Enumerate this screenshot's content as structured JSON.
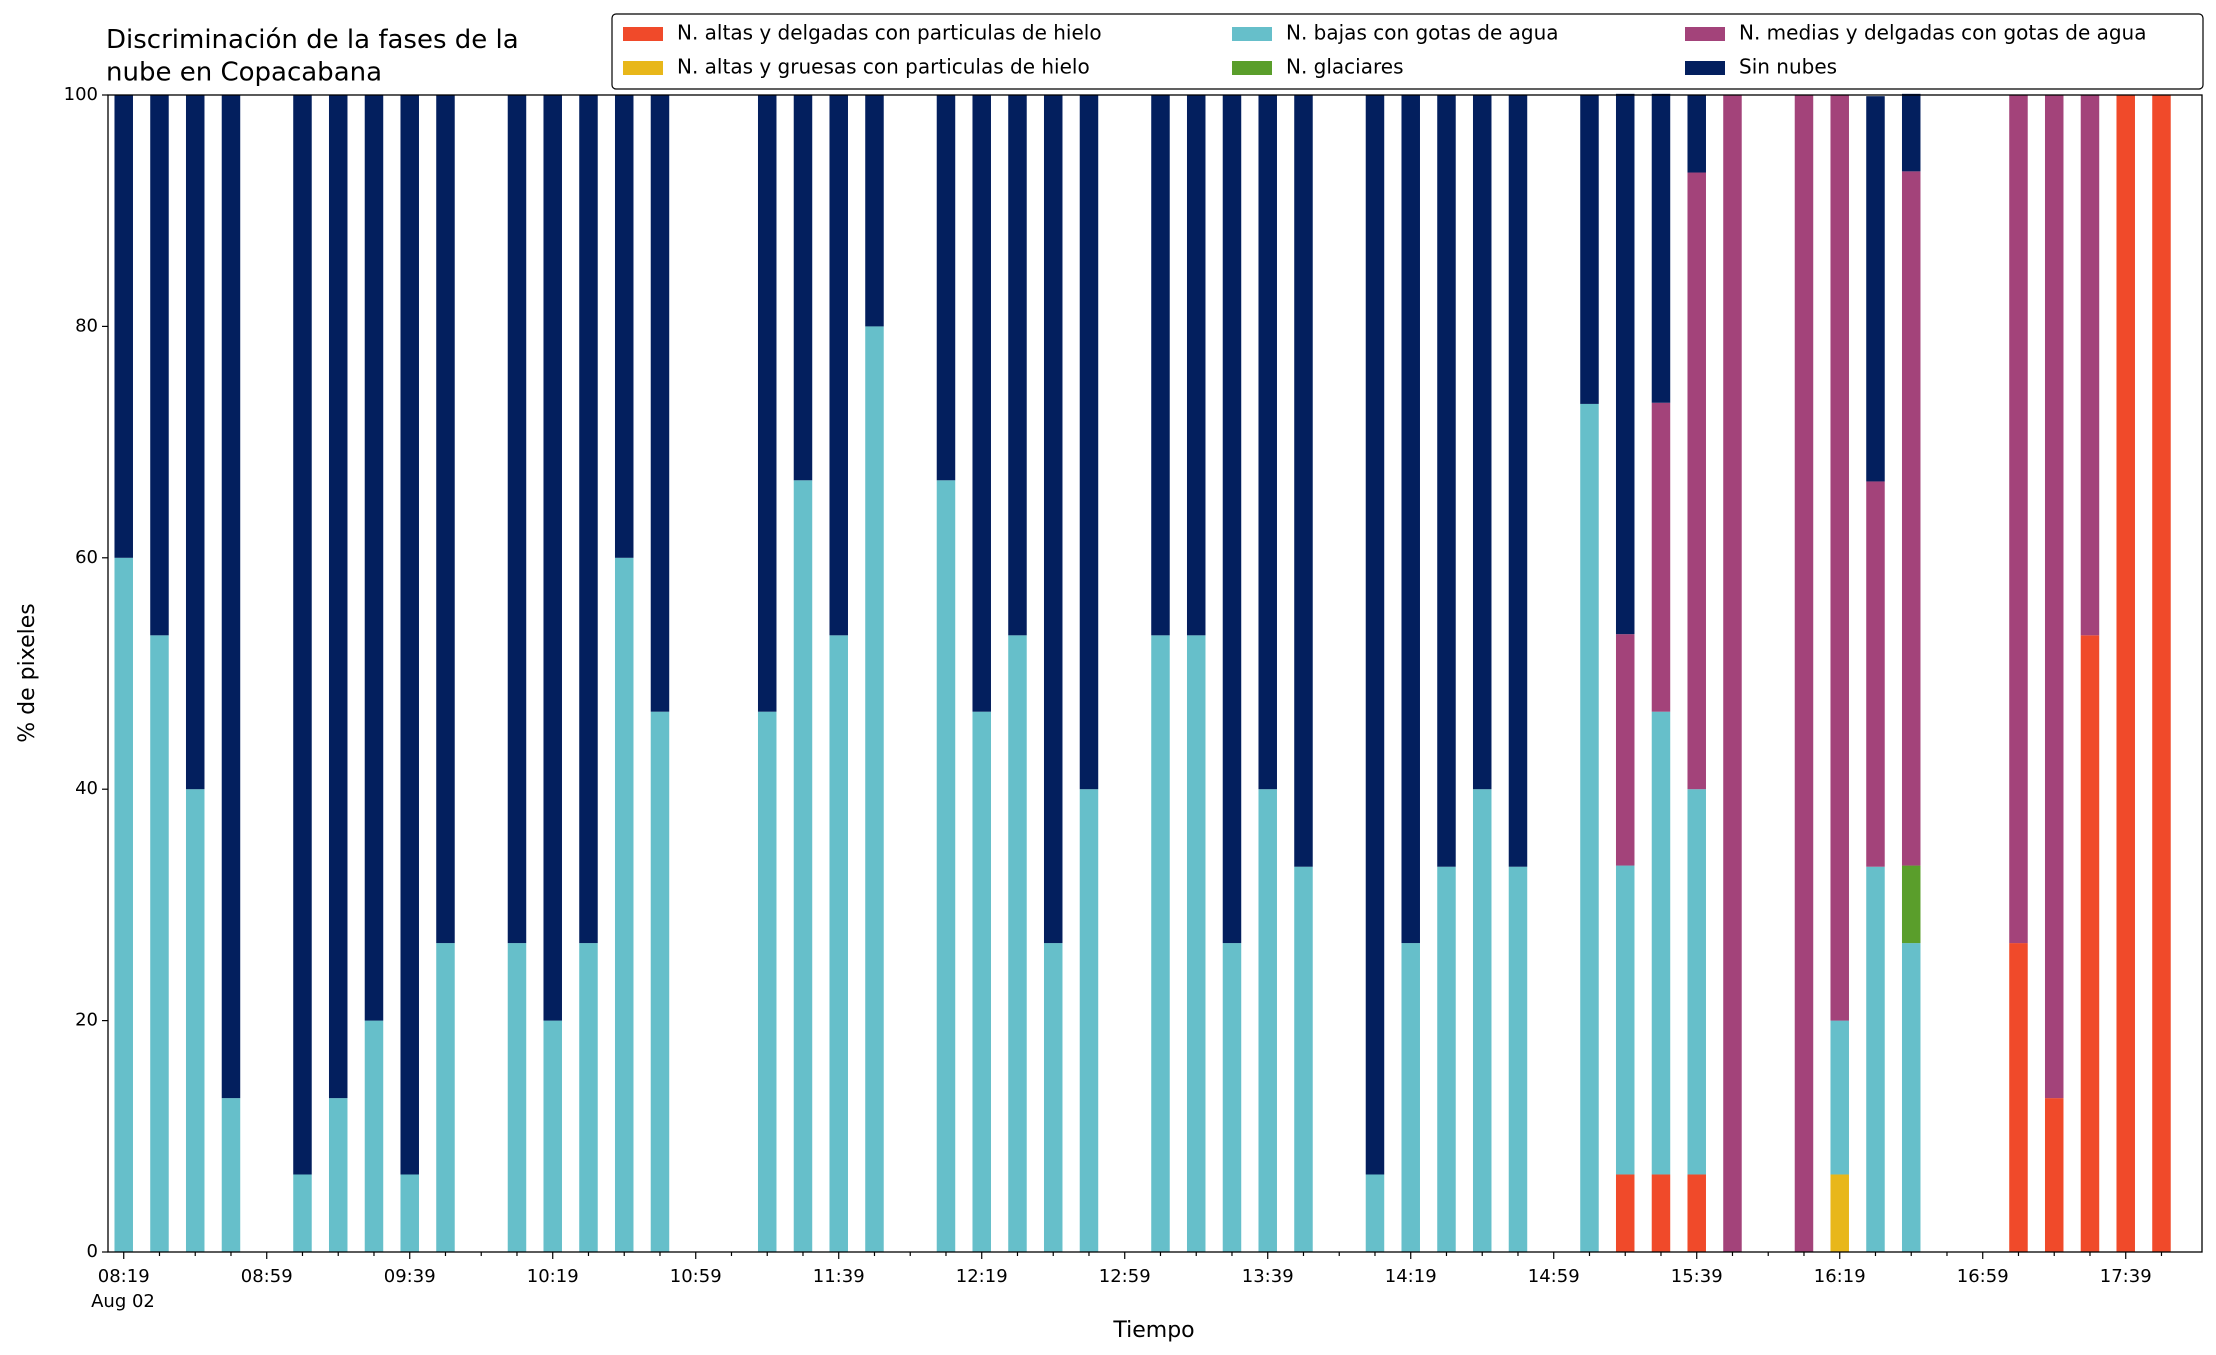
{
  "chart_data": {
    "type": "stacked_bar",
    "title": "Discriminación de la fases de la\nnube en Copacabana",
    "x_label": "Tiempo",
    "y_label": "% de pixeles",
    "x_date_label": "Aug 02",
    "categories": [
      "08:19",
      null,
      null,
      null,
      "08:59",
      null,
      null,
      null,
      "09:39",
      null,
      null,
      null,
      "10:19",
      null,
      null,
      null,
      "10:59",
      null,
      null,
      null,
      "11:39",
      null,
      null,
      null,
      "12:19",
      null,
      null,
      null,
      "12:59",
      null,
      null,
      null,
      "13:39",
      null,
      null,
      null,
      "14:19",
      null,
      null,
      null,
      "14:59",
      null,
      null,
      null,
      "15:39",
      null,
      null,
      null,
      "16:19",
      null,
      null,
      null,
      "16:59",
      null,
      null,
      null,
      "17:39",
      null
    ],
    "ylim": [
      0,
      100
    ],
    "yticks": [
      0,
      20,
      40,
      60,
      80,
      100
    ],
    "series": [
      {
        "name": "N. altas y delgadas con particulas de hielo",
        "color": "#f04a2a",
        "values": [
          0,
          0,
          0,
          0,
          0,
          0,
          0,
          0,
          0,
          0,
          0,
          0,
          0,
          0,
          0,
          0,
          0,
          0,
          0,
          0,
          0,
          0,
          0,
          0,
          0,
          0,
          0,
          0,
          0,
          0,
          0,
          0,
          0,
          0,
          0,
          0,
          0,
          0,
          0,
          0,
          0,
          0,
          6.7,
          6.7,
          6.7,
          0,
          0,
          0,
          0,
          0,
          0,
          0,
          0,
          26.7,
          13.3,
          53.3,
          100,
          100
        ]
      },
      {
        "name": "N. altas y gruesas con particulas de hielo",
        "color": "#e8b71a",
        "values": [
          0,
          0,
          0,
          0,
          0,
          0,
          0,
          0,
          0,
          0,
          0,
          0,
          0,
          0,
          0,
          0,
          0,
          0,
          0,
          0,
          0,
          0,
          0,
          0,
          0,
          0,
          0,
          0,
          0,
          0,
          0,
          0,
          0,
          0,
          0,
          0,
          0,
          0,
          0,
          0,
          0,
          0,
          0,
          0,
          0,
          0,
          0,
          0,
          6.7,
          0,
          0,
          0,
          0,
          0,
          0,
          0,
          0,
          0
        ]
      },
      {
        "name": "N. bajas con gotas de agua",
        "color": "#66bfca",
        "values": [
          60,
          53.3,
          40,
          13.3,
          0,
          6.7,
          13.3,
          20,
          6.7,
          26.7,
          0,
          26.7,
          20,
          26.7,
          60,
          46.7,
          0,
          0,
          46.7,
          66.7,
          53.3,
          80,
          0,
          66.7,
          46.7,
          53.3,
          26.7,
          40,
          0,
          53.3,
          53.3,
          26.7,
          40,
          33.3,
          0,
          6.7,
          26.7,
          33.3,
          40,
          33.3,
          0,
          73.3,
          26.7,
          40,
          33.3,
          0,
          0,
          0,
          13.3,
          33.3,
          26.7,
          0,
          0,
          0,
          0,
          0,
          0,
          0
        ]
      },
      {
        "name": "N. glaciares",
        "color": "#5a9e2b",
        "values": [
          0,
          0,
          0,
          0,
          0,
          0,
          0,
          0,
          0,
          0,
          0,
          0,
          0,
          0,
          0,
          0,
          0,
          0,
          0,
          0,
          0,
          0,
          0,
          0,
          0,
          0,
          0,
          0,
          0,
          0,
          0,
          0,
          0,
          0,
          0,
          0,
          0,
          0,
          0,
          0,
          0,
          0,
          0,
          0,
          0,
          0,
          0,
          0,
          0,
          0,
          6.7,
          0,
          0,
          0,
          0,
          0,
          0,
          0
        ]
      },
      {
        "name": "N. medias y delgadas con gotas de agua",
        "color": "#a3437a",
        "values": [
          0,
          0,
          0,
          0,
          0,
          0,
          0,
          0,
          0,
          0,
          0,
          0,
          0,
          0,
          0,
          0,
          0,
          0,
          0,
          0,
          0,
          0,
          0,
          0,
          0,
          0,
          0,
          0,
          0,
          0,
          0,
          0,
          0,
          0,
          0,
          0,
          0,
          0,
          0,
          0,
          0,
          0,
          20,
          26.7,
          53.3,
          100,
          0,
          100,
          80,
          33.3,
          60,
          0,
          0,
          73.3,
          86.7,
          46.7,
          0,
          0
        ]
      },
      {
        "name": "Sin nubes",
        "color": "#031f5e",
        "values": [
          40,
          46.7,
          60,
          86.7,
          0,
          93.3,
          86.7,
          80,
          93.3,
          73.3,
          0,
          73.3,
          80,
          73.3,
          40,
          53.3,
          0,
          0,
          53.3,
          33.3,
          46.7,
          20,
          0,
          33.3,
          53.3,
          46.7,
          73.3,
          60,
          0,
          46.7,
          46.7,
          73.3,
          60,
          66.7,
          0,
          93.3,
          73.3,
          66.7,
          60,
          66.7,
          0,
          26.7,
          46.7,
          26.7,
          6.7,
          0,
          0,
          0,
          0,
          33.3,
          6.7,
          0,
          0,
          0,
          0,
          0,
          0,
          0
        ]
      }
    ]
  }
}
